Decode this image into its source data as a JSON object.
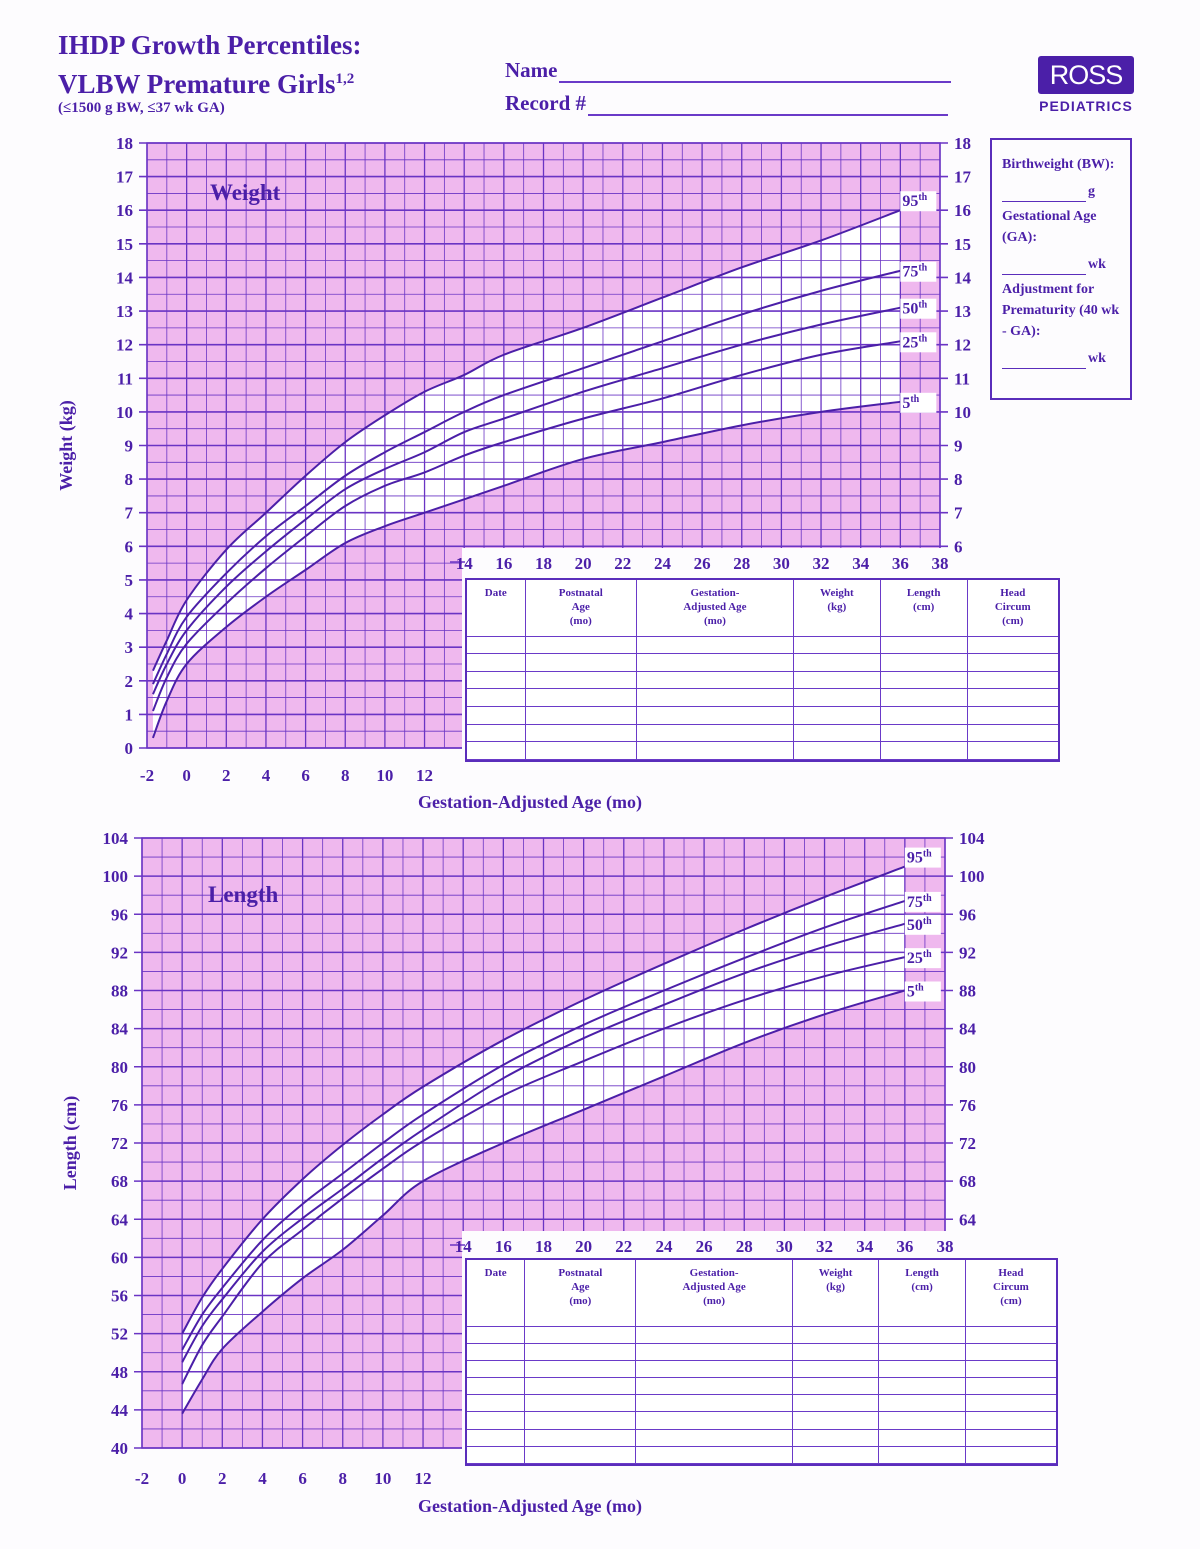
{
  "header": {
    "title_line1": "IHDP Growth Percentiles:",
    "title_line2": "VLBW Premature Girls",
    "title_superscript": "1,2",
    "subtitle": "(≤1500 g BW, ≤37 wk GA)",
    "name_label": "Name",
    "record_label": "Record #",
    "logo_text": "ROSS",
    "logo_sub": "PEDIATRICS"
  },
  "infobox": {
    "bw_label": "Birthweight (BW):",
    "bw_unit": "g",
    "ga_label": "Gestational Age (GA):",
    "ga_unit": "wk",
    "adj_label": "Adjustment for Prematurity (40 wk - GA):",
    "adj_unit": "wk"
  },
  "record_table": {
    "headers": [
      "Date",
      "Postnatal\nAge\n(mo)",
      "Gestation-\nAdjusted Age\n(mo)",
      "Weight\n(kg)",
      "Length\n(cm)",
      "Head\nCircum\n(cm)"
    ]
  },
  "colors": {
    "ink": "#4b1fa8",
    "grid": "#6a34c4",
    "background_shade": "#efb8ee",
    "band": "#ffffff"
  },
  "chart_data": [
    {
      "type": "line",
      "title": "Weight",
      "xlabel": "Gestation-Adjusted Age (mo)",
      "ylabel": "Weight (kg)",
      "xlim": [
        -2,
        38
      ],
      "ylim": [
        0,
        18
      ],
      "grid": true,
      "x_ticks_bottom": [
        -2,
        0,
        2,
        4,
        6,
        8,
        10,
        12
      ],
      "x_ticks_top": [
        14,
        16,
        18,
        20,
        22,
        24,
        26,
        28,
        30,
        32,
        34,
        36,
        38
      ],
      "y_ticks_left": [
        0,
        1,
        2,
        3,
        4,
        5,
        6,
        7,
        8,
        9,
        10,
        11,
        12,
        13,
        14,
        15,
        16,
        17,
        18
      ],
      "y_ticks_right": [
        6,
        7,
        8,
        9,
        10,
        11,
        12,
        13,
        14,
        15,
        16,
        17,
        18
      ],
      "x": [
        -1.7,
        -1,
        0,
        2,
        4,
        6,
        8,
        10,
        12,
        14,
        16,
        20,
        24,
        28,
        32,
        36
      ],
      "series": [
        {
          "name": "95th",
          "values": [
            2.3,
            3.2,
            4.4,
            5.9,
            7.0,
            8.1,
            9.1,
            9.9,
            10.6,
            11.1,
            11.7,
            12.5,
            13.4,
            14.3,
            15.1,
            16.0
          ]
        },
        {
          "name": "75th",
          "values": [
            1.9,
            2.8,
            3.9,
            5.2,
            6.3,
            7.2,
            8.1,
            8.8,
            9.4,
            10.0,
            10.5,
            11.3,
            12.1,
            12.9,
            13.6,
            14.2
          ]
        },
        {
          "name": "50th",
          "values": [
            1.6,
            2.5,
            3.5,
            4.8,
            5.85,
            6.8,
            7.7,
            8.3,
            8.8,
            9.4,
            9.8,
            10.6,
            11.3,
            12.0,
            12.6,
            13.1
          ]
        },
        {
          "name": "25th",
          "values": [
            1.1,
            2.1,
            3.1,
            4.3,
            5.35,
            6.3,
            7.2,
            7.8,
            8.2,
            8.7,
            9.1,
            9.8,
            10.4,
            11.1,
            11.7,
            12.1
          ]
        },
        {
          "name": "5th",
          "values": [
            0.3,
            1.4,
            2.5,
            3.6,
            4.5,
            5.3,
            6.1,
            6.6,
            7.0,
            7.4,
            7.8,
            8.6,
            9.1,
            9.6,
            10.0,
            10.3
          ]
        }
      ]
    },
    {
      "type": "line",
      "title": "Length",
      "xlabel": "Gestation-Adjusted Age (mo)",
      "ylabel": "Length (cm)",
      "xlim": [
        -2,
        38
      ],
      "ylim": [
        40,
        104
      ],
      "grid": true,
      "x_ticks_bottom": [
        -2,
        0,
        2,
        4,
        6,
        8,
        10,
        12
      ],
      "x_ticks_top": [
        14,
        16,
        18,
        20,
        22,
        24,
        26,
        28,
        30,
        32,
        34,
        36,
        38
      ],
      "y_ticks_left": [
        40,
        44,
        48,
        52,
        56,
        60,
        64,
        68,
        72,
        76,
        80,
        84,
        88,
        92,
        96,
        100,
        104
      ],
      "y_ticks_right": [
        64,
        68,
        72,
        76,
        80,
        84,
        88,
        92,
        96,
        100,
        104
      ],
      "x": [
        0,
        1,
        2,
        4,
        6,
        8,
        10,
        12,
        16,
        20,
        24,
        28,
        32,
        36
      ],
      "series": [
        {
          "name": "95th",
          "values": [
            52.0,
            55.8,
            58.8,
            64.0,
            68.2,
            71.8,
            75.0,
            77.9,
            82.8,
            87.0,
            90.8,
            94.4,
            97.8,
            101.0
          ]
        },
        {
          "name": "75th",
          "values": [
            50.3,
            54.0,
            56.8,
            61.8,
            65.6,
            68.8,
            72.0,
            75.0,
            80.2,
            84.4,
            88.0,
            91.4,
            94.6,
            97.4
          ]
        },
        {
          "name": "50th",
          "values": [
            49.0,
            52.8,
            55.6,
            60.6,
            64.1,
            67.2,
            70.4,
            73.4,
            78.8,
            83.0,
            86.5,
            89.8,
            92.6,
            95.0
          ]
        },
        {
          "name": "25th",
          "values": [
            46.7,
            50.8,
            53.8,
            59.4,
            62.9,
            66.2,
            69.3,
            72.2,
            77.0,
            80.6,
            84.0,
            87.0,
            89.5,
            91.5
          ]
        },
        {
          "name": "5th",
          "values": [
            43.6,
            47.2,
            50.4,
            54.3,
            57.8,
            60.8,
            64.4,
            68.0,
            72.0,
            75.5,
            79.0,
            82.5,
            85.5,
            88.0
          ]
        }
      ]
    }
  ]
}
